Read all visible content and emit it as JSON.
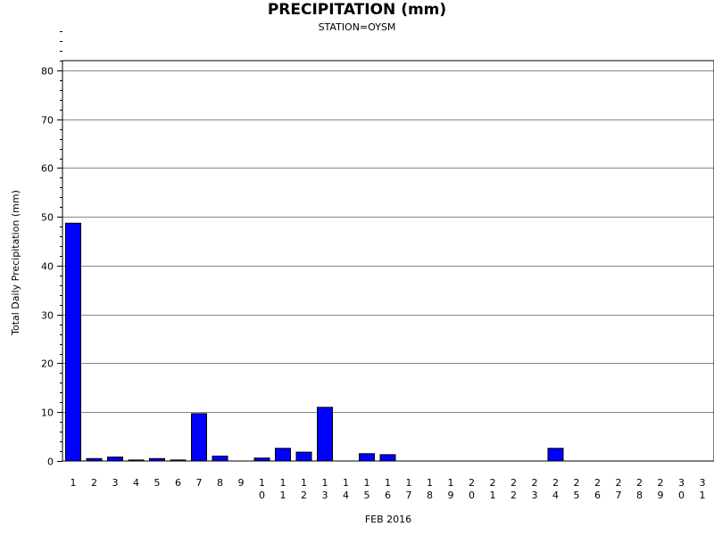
{
  "chart_data": {
    "type": "bar",
    "title": "PRECIPITATION (mm)",
    "subtitle": "STATION=OYSM",
    "xlabel": "FEB 2016",
    "ylabel": "Total Daily Precipitation (mm)",
    "ylim": [
      0,
      82
    ],
    "yticks": [
      0,
      10,
      20,
      30,
      40,
      50,
      60,
      70,
      80
    ],
    "grid": true,
    "bar_color": "#0000ff",
    "categories": [
      "1",
      "2",
      "3",
      "4",
      "5",
      "6",
      "7",
      "8",
      "9",
      "10",
      "11",
      "12",
      "13",
      "14",
      "15",
      "16",
      "17",
      "18",
      "19",
      "20",
      "21",
      "22",
      "23",
      "24",
      "25",
      "26",
      "27",
      "28",
      "29",
      "30",
      "31"
    ],
    "values": [
      48.7,
      0.5,
      0.8,
      0.2,
      0.5,
      0.2,
      9.7,
      1.0,
      0,
      0.6,
      2.6,
      1.8,
      11.0,
      0,
      1.5,
      1.3,
      0,
      0,
      0,
      0,
      0,
      0,
      0,
      2.6,
      0,
      0,
      0,
      0,
      0,
      0,
      0
    ]
  }
}
